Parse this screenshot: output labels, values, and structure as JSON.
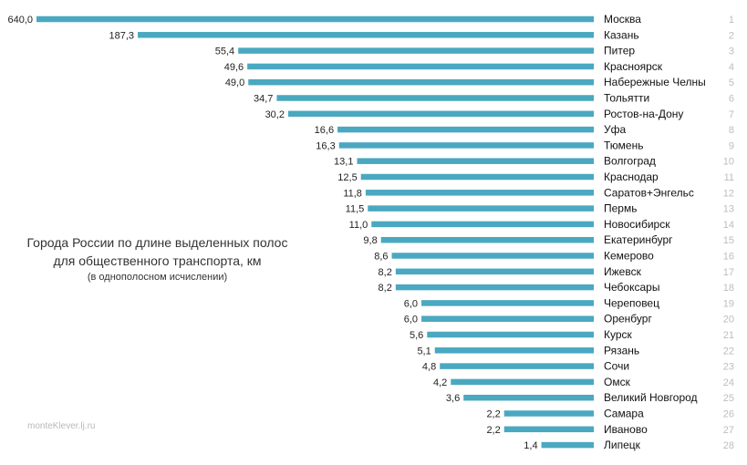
{
  "title": {
    "line1": "Города России по длине выделенных  полос",
    "line2": "для общественного транспорта, км",
    "line3": "(в однополосном исчислении)"
  },
  "credit": "monteKlever.lj.ru",
  "colors": {
    "bar": "#4aa8c0",
    "value_text": "#222222",
    "city_text": "#111111",
    "rank_text": "#bdbdbd"
  },
  "chart_data": {
    "type": "bar",
    "orientation": "horizontal",
    "title": "Города России по длине выделенных  полос для общественного транспорта, км (в однополосном исчислении)",
    "categories": [
      "Москва",
      "Казань",
      "Питер",
      "Красноярск",
      "Набережные Челны",
      "Тольятти",
      "Ростов-на-Дону",
      "Уфа",
      "Тюмень",
      "Волгоград",
      "Краснодар",
      "Саратов+Энгельс",
      "Пермь",
      "Новосибирск",
      "Екатеринбург",
      "Кемерово",
      "Ижевск",
      "Чебоксары",
      "Череповец",
      "Оренбург",
      "Курск",
      "Рязань",
      "Сочи",
      "Омск",
      "Великий Новгород",
      "Самара",
      "Иваново",
      "Липецк"
    ],
    "values": [
      640.0,
      187.3,
      55.4,
      49.6,
      49.0,
      34.7,
      30.2,
      16.6,
      16.3,
      13.1,
      12.5,
      11.8,
      11.5,
      11.0,
      9.8,
      8.6,
      8.2,
      8.2,
      6.0,
      6.0,
      5.6,
      5.1,
      4.8,
      4.2,
      3.6,
      2.2,
      2.2,
      1.4
    ],
    "value_labels": [
      "640,0",
      "187,3",
      "55,4",
      "49,6",
      "49,0",
      "34,7",
      "30,2",
      "16,6",
      "16,3",
      "13,1",
      "12,5",
      "11,8",
      "11,5",
      "11,0",
      "9,8",
      "8,6",
      "8,2",
      "8,2",
      "6,0",
      "6,0",
      "5,6",
      "5,1",
      "4,8",
      "4,2",
      "3,6",
      "2,2",
      "2,2",
      "1,4"
    ],
    "ranks": [
      "1",
      "2",
      "3",
      "4",
      "5",
      "6",
      "7",
      "8",
      "9",
      "10",
      "11",
      "12",
      "13",
      "14",
      "15",
      "16",
      "17",
      "18",
      "19",
      "20",
      "21",
      "22",
      "23",
      "24",
      "25",
      "26",
      "27",
      "28"
    ],
    "scale": "logarithmic",
    "grid": false,
    "legend": "none"
  }
}
